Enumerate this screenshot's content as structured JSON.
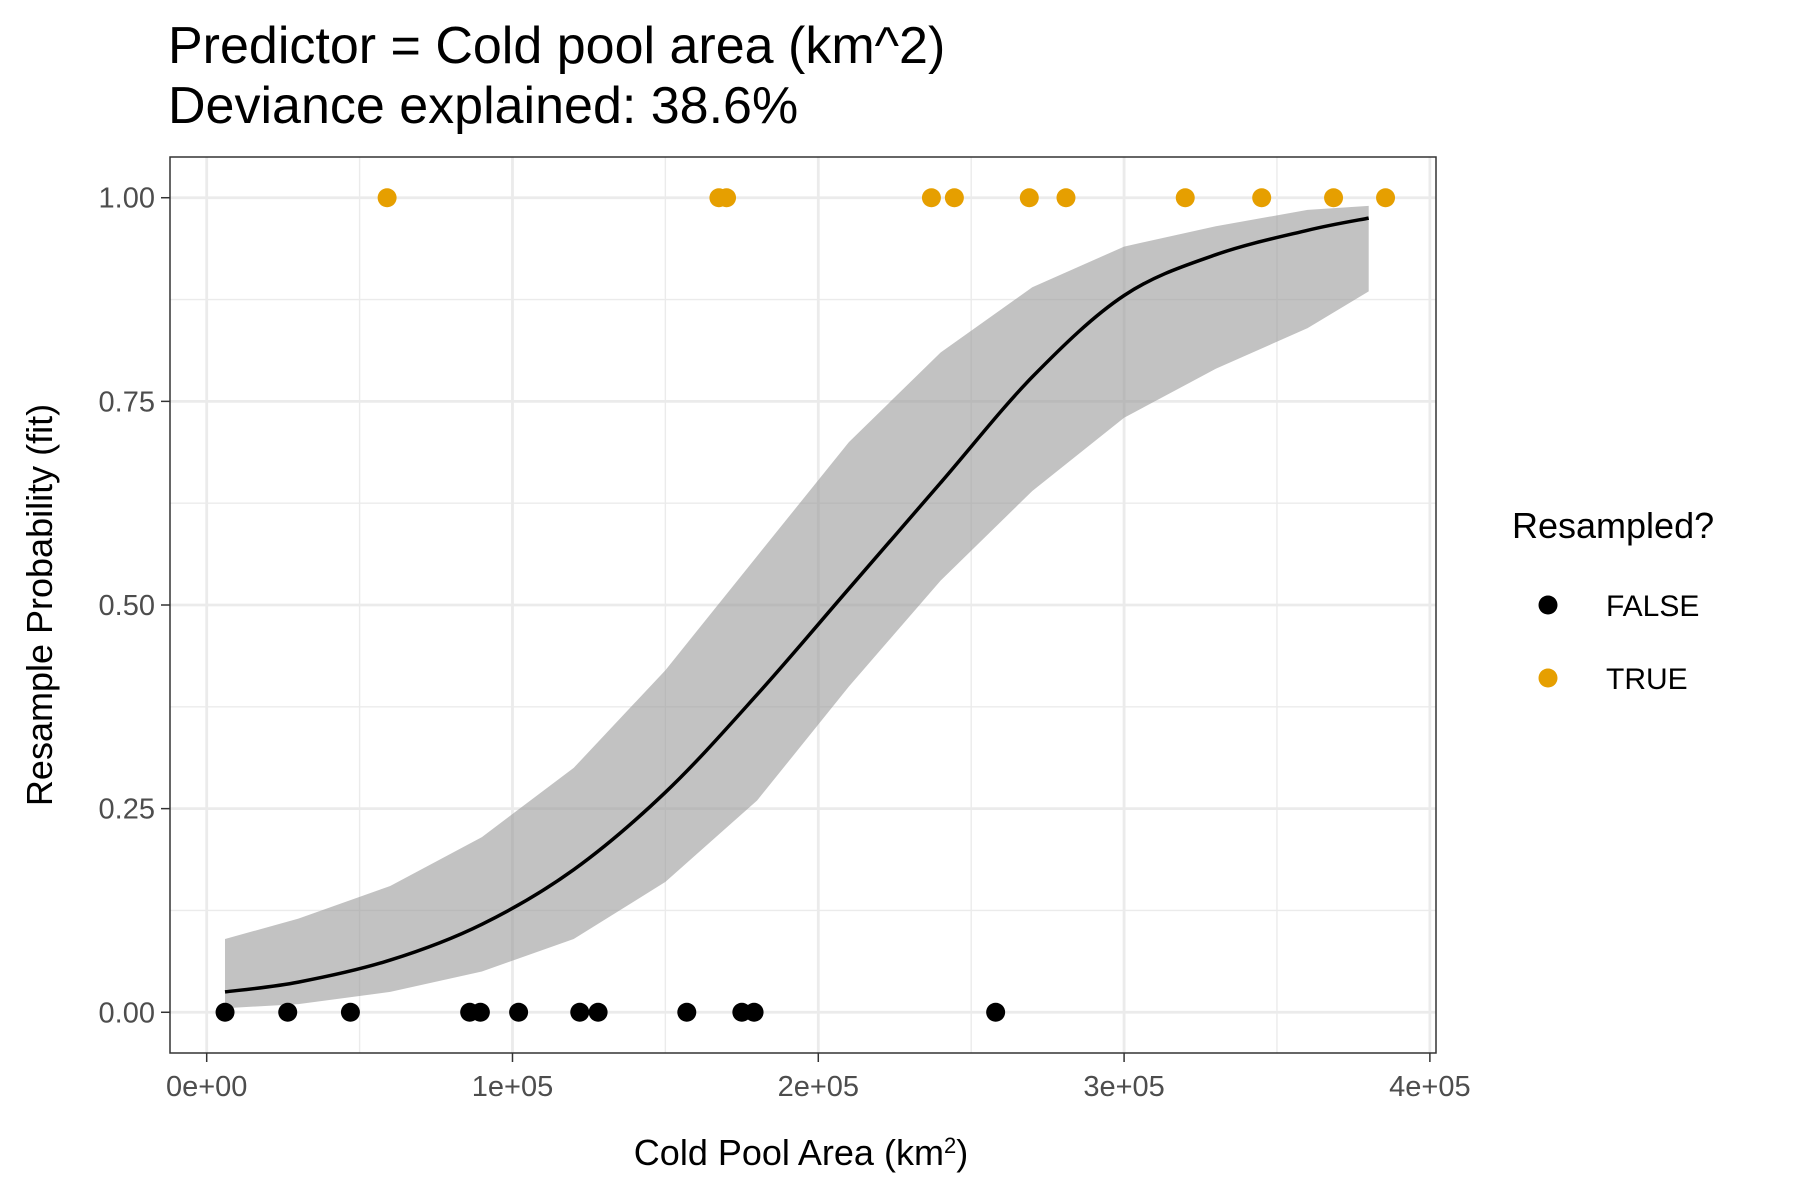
{
  "chart_data": {
    "type": "scatter",
    "title": [
      "Predictor = Cold pool area (km^2)",
      "Deviance explained: 38.6%"
    ],
    "xlabel": "Cold Pool Area (km",
    "xlabel_sup": "2",
    "xlabel_close": ")",
    "ylabel": "Resample Probability (fit)",
    "xlim": [
      -12000,
      402000
    ],
    "ylim": [
      -0.05,
      1.05
    ],
    "x_ticks": [
      {
        "value": 0,
        "label": "0e+00"
      },
      {
        "value": 100000,
        "label": "1e+05"
      },
      {
        "value": 200000,
        "label": "2e+05"
      },
      {
        "value": 300000,
        "label": "3e+05"
      },
      {
        "value": 400000,
        "label": "4e+05"
      }
    ],
    "y_ticks": [
      {
        "value": 0,
        "label": "0.00"
      },
      {
        "value": 0.25,
        "label": "0.25"
      },
      {
        "value": 0.5,
        "label": "0.50"
      },
      {
        "value": 0.75,
        "label": "0.75"
      },
      {
        "value": 1,
        "label": "1.00"
      }
    ],
    "grid": true,
    "legend": {
      "title": "Resampled?",
      "position": "right",
      "entries": [
        {
          "label": "FALSE",
          "color": "#000000"
        },
        {
          "label": "TRUE",
          "color": "#E69F00"
        }
      ]
    },
    "series": [
      {
        "name": "FALSE",
        "color": "#000000",
        "x": [
          6000,
          26500,
          47000,
          86000,
          89500,
          102000,
          122000,
          128000,
          157000,
          175000,
          179000,
          258000
        ],
        "y": [
          0,
          0,
          0,
          0,
          0,
          0,
          0,
          0,
          0,
          0,
          0,
          0
        ]
      },
      {
        "name": "TRUE",
        "color": "#E69F00",
        "x": [
          59000,
          167500,
          170000,
          237000,
          244500,
          269000,
          281000,
          320000,
          345000,
          368500,
          385500
        ],
        "y": [
          1,
          1,
          1,
          1,
          1,
          1,
          1,
          1,
          1,
          1,
          1
        ]
      }
    ],
    "fit": {
      "color": "#000000",
      "ribbon_color": "#999999",
      "x": [
        6000,
        30000,
        60000,
        90000,
        120000,
        150000,
        180000,
        210000,
        240000,
        270000,
        300000,
        330000,
        360000,
        380000
      ],
      "y": [
        0.025,
        0.037,
        0.064,
        0.108,
        0.175,
        0.27,
        0.39,
        0.52,
        0.65,
        0.78,
        0.88,
        0.93,
        0.96,
        0.975
      ],
      "lower": [
        0.005,
        0.01,
        0.025,
        0.05,
        0.09,
        0.16,
        0.26,
        0.4,
        0.53,
        0.64,
        0.73,
        0.79,
        0.84,
        0.885
      ],
      "upper": [
        0.09,
        0.115,
        0.155,
        0.215,
        0.3,
        0.42,
        0.56,
        0.7,
        0.81,
        0.89,
        0.94,
        0.965,
        0.985,
        0.99
      ]
    }
  }
}
